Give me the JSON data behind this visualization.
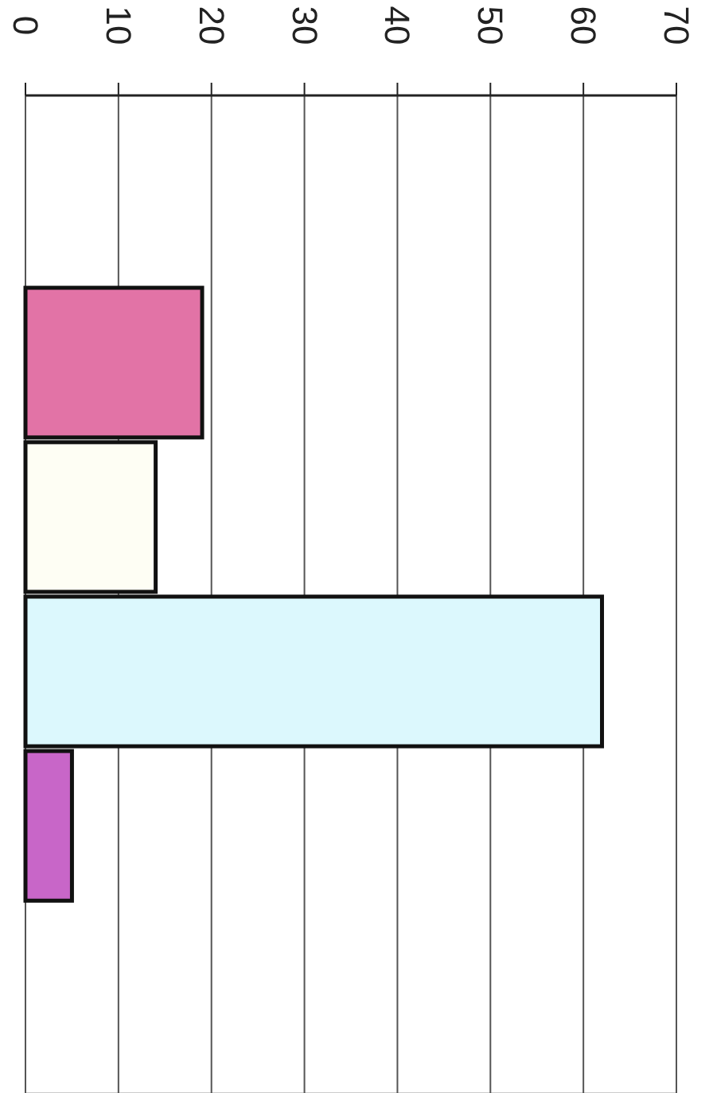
{
  "chart_data": {
    "type": "bar",
    "orientation": "horizontal",
    "categories": [
      null,
      null,
      null,
      null
    ],
    "values": [
      19,
      14,
      62,
      5
    ],
    "colors": [
      "#e273a6",
      "#fefef4",
      "#dcf8fd",
      "#c866c8"
    ],
    "xlim": [
      0,
      70
    ],
    "xticks": [
      0,
      10,
      20,
      30,
      40,
      50,
      60,
      70
    ],
    "grid": "x"
  }
}
